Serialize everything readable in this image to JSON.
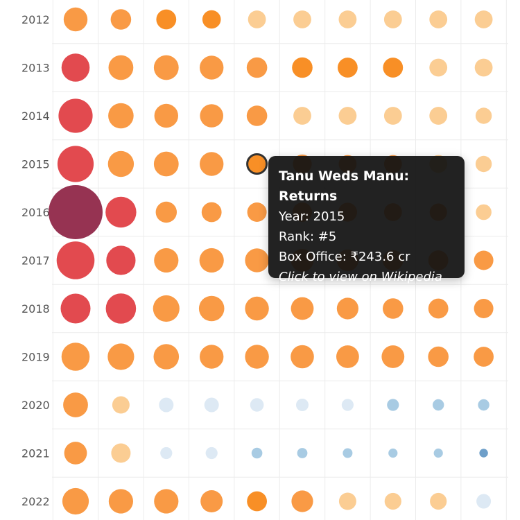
{
  "chart_data": {
    "type": "scatter",
    "kind": "bubble-grid",
    "description_unit": "Box office (₹ cr) by year and rank",
    "years": [
      "2012",
      "2013",
      "2014",
      "2015",
      "2016",
      "2017",
      "2018",
      "2019",
      "2020",
      "2021",
      "2022"
    ],
    "ranks": [
      1,
      2,
      3,
      4,
      5,
      6,
      7,
      8,
      9,
      10
    ],
    "grid": true,
    "color_scale": {
      "very_high": "#963352",
      "high": "#e24a4f",
      "medium": "#f99a45",
      "medium_dark": "#f88f26",
      "low": "#fbcd93",
      "very_low": "#dde9f4",
      "minimal": "#a8cbe3",
      "minimal_dark": "#6e9fc9"
    },
    "rows": [
      {
        "year": "2012",
        "sizes": [
          0.44,
          0.38,
          0.37,
          0.34,
          0.33,
          0.33,
          0.33,
          0.33,
          0.33,
          0.33
        ],
        "colors": [
          "medium",
          "medium",
          "medium_dark",
          "medium_dark",
          "low",
          "low",
          "low",
          "low",
          "low",
          "low"
        ]
      },
      {
        "year": "2013",
        "sizes": [
          0.52,
          0.46,
          0.46,
          0.44,
          0.38,
          0.38,
          0.37,
          0.37,
          0.33,
          0.33
        ],
        "colors": [
          "high",
          "medium",
          "medium",
          "medium",
          "medium",
          "medium_dark",
          "medium_dark",
          "medium_dark",
          "low",
          "low"
        ]
      },
      {
        "year": "2014",
        "sizes": [
          0.63,
          0.47,
          0.44,
          0.43,
          0.38,
          0.33,
          0.33,
          0.33,
          0.33,
          0.3
        ],
        "colors": [
          "high",
          "medium",
          "medium",
          "medium",
          "medium",
          "low",
          "low",
          "low",
          "low",
          "low"
        ]
      },
      {
        "year": "2015",
        "sizes": [
          0.67,
          0.48,
          0.46,
          0.44,
          0.36,
          0.35,
          0.33,
          0.33,
          0.33,
          0.3
        ],
        "colors": [
          "high",
          "medium",
          "medium",
          "medium",
          "medium_dark",
          "medium",
          "medium",
          "medium",
          "low",
          "low"
        ]
      },
      {
        "year": "2016",
        "sizes": [
          1.0,
          0.57,
          0.39,
          0.37,
          0.36,
          0.36,
          0.35,
          0.33,
          0.32,
          0.29
        ],
        "colors": [
          "very_high",
          "high",
          "medium",
          "medium",
          "medium",
          "medium",
          "medium",
          "medium",
          "medium",
          "low"
        ]
      },
      {
        "year": "2017",
        "sizes": [
          0.7,
          0.54,
          0.45,
          0.45,
          0.44,
          0.42,
          0.4,
          0.38,
          0.37,
          0.36
        ],
        "colors": [
          "high",
          "high",
          "medium",
          "medium",
          "medium",
          "medium",
          "medium",
          "medium",
          "medium",
          "medium"
        ]
      },
      {
        "year": "2018",
        "sizes": [
          0.55,
          0.56,
          0.49,
          0.47,
          0.44,
          0.42,
          0.4,
          0.38,
          0.37,
          0.36
        ],
        "colors": [
          "high",
          "high",
          "medium",
          "medium",
          "medium",
          "medium",
          "medium",
          "medium",
          "medium",
          "medium"
        ]
      },
      {
        "year": "2019",
        "sizes": [
          0.52,
          0.49,
          0.47,
          0.44,
          0.44,
          0.43,
          0.42,
          0.42,
          0.38,
          0.37
        ],
        "colors": [
          "medium",
          "medium",
          "medium",
          "medium",
          "medium",
          "medium",
          "medium",
          "medium",
          "medium",
          "medium"
        ]
      },
      {
        "year": "2020",
        "sizes": [
          0.46,
          0.32,
          0.27,
          0.27,
          0.25,
          0.23,
          0.22,
          0.22,
          0.21,
          0.21
        ],
        "colors": [
          "medium",
          "low",
          "very_low",
          "very_low",
          "very_low",
          "very_low",
          "very_low",
          "minimal",
          "minimal",
          "minimal"
        ]
      },
      {
        "year": "2021",
        "sizes": [
          0.42,
          0.36,
          0.22,
          0.22,
          0.2,
          0.19,
          0.18,
          0.17,
          0.17,
          0.16
        ],
        "colors": [
          "medium",
          "low",
          "very_low",
          "very_low",
          "minimal",
          "minimal",
          "minimal",
          "minimal",
          "minimal",
          "minimal_dark"
        ]
      },
      {
        "year": "2022",
        "sizes": [
          0.49,
          0.45,
          0.45,
          0.41,
          0.37,
          0.4,
          0.32,
          0.31,
          0.31,
          0.27
        ],
        "colors": [
          "medium",
          "medium",
          "medium",
          "medium",
          "medium_dark",
          "medium",
          "low",
          "low",
          "low",
          "very_low"
        ]
      }
    ],
    "highlighted": {
      "year": "2015",
      "rank": 5
    }
  },
  "tooltip": {
    "title": "Tanu Weds Manu: Returns",
    "year": "Year: 2015",
    "rank": "Rank: #5",
    "box_office": "Box Office: ₹243.6 cr",
    "link": "Click to view on Wikipedia"
  }
}
